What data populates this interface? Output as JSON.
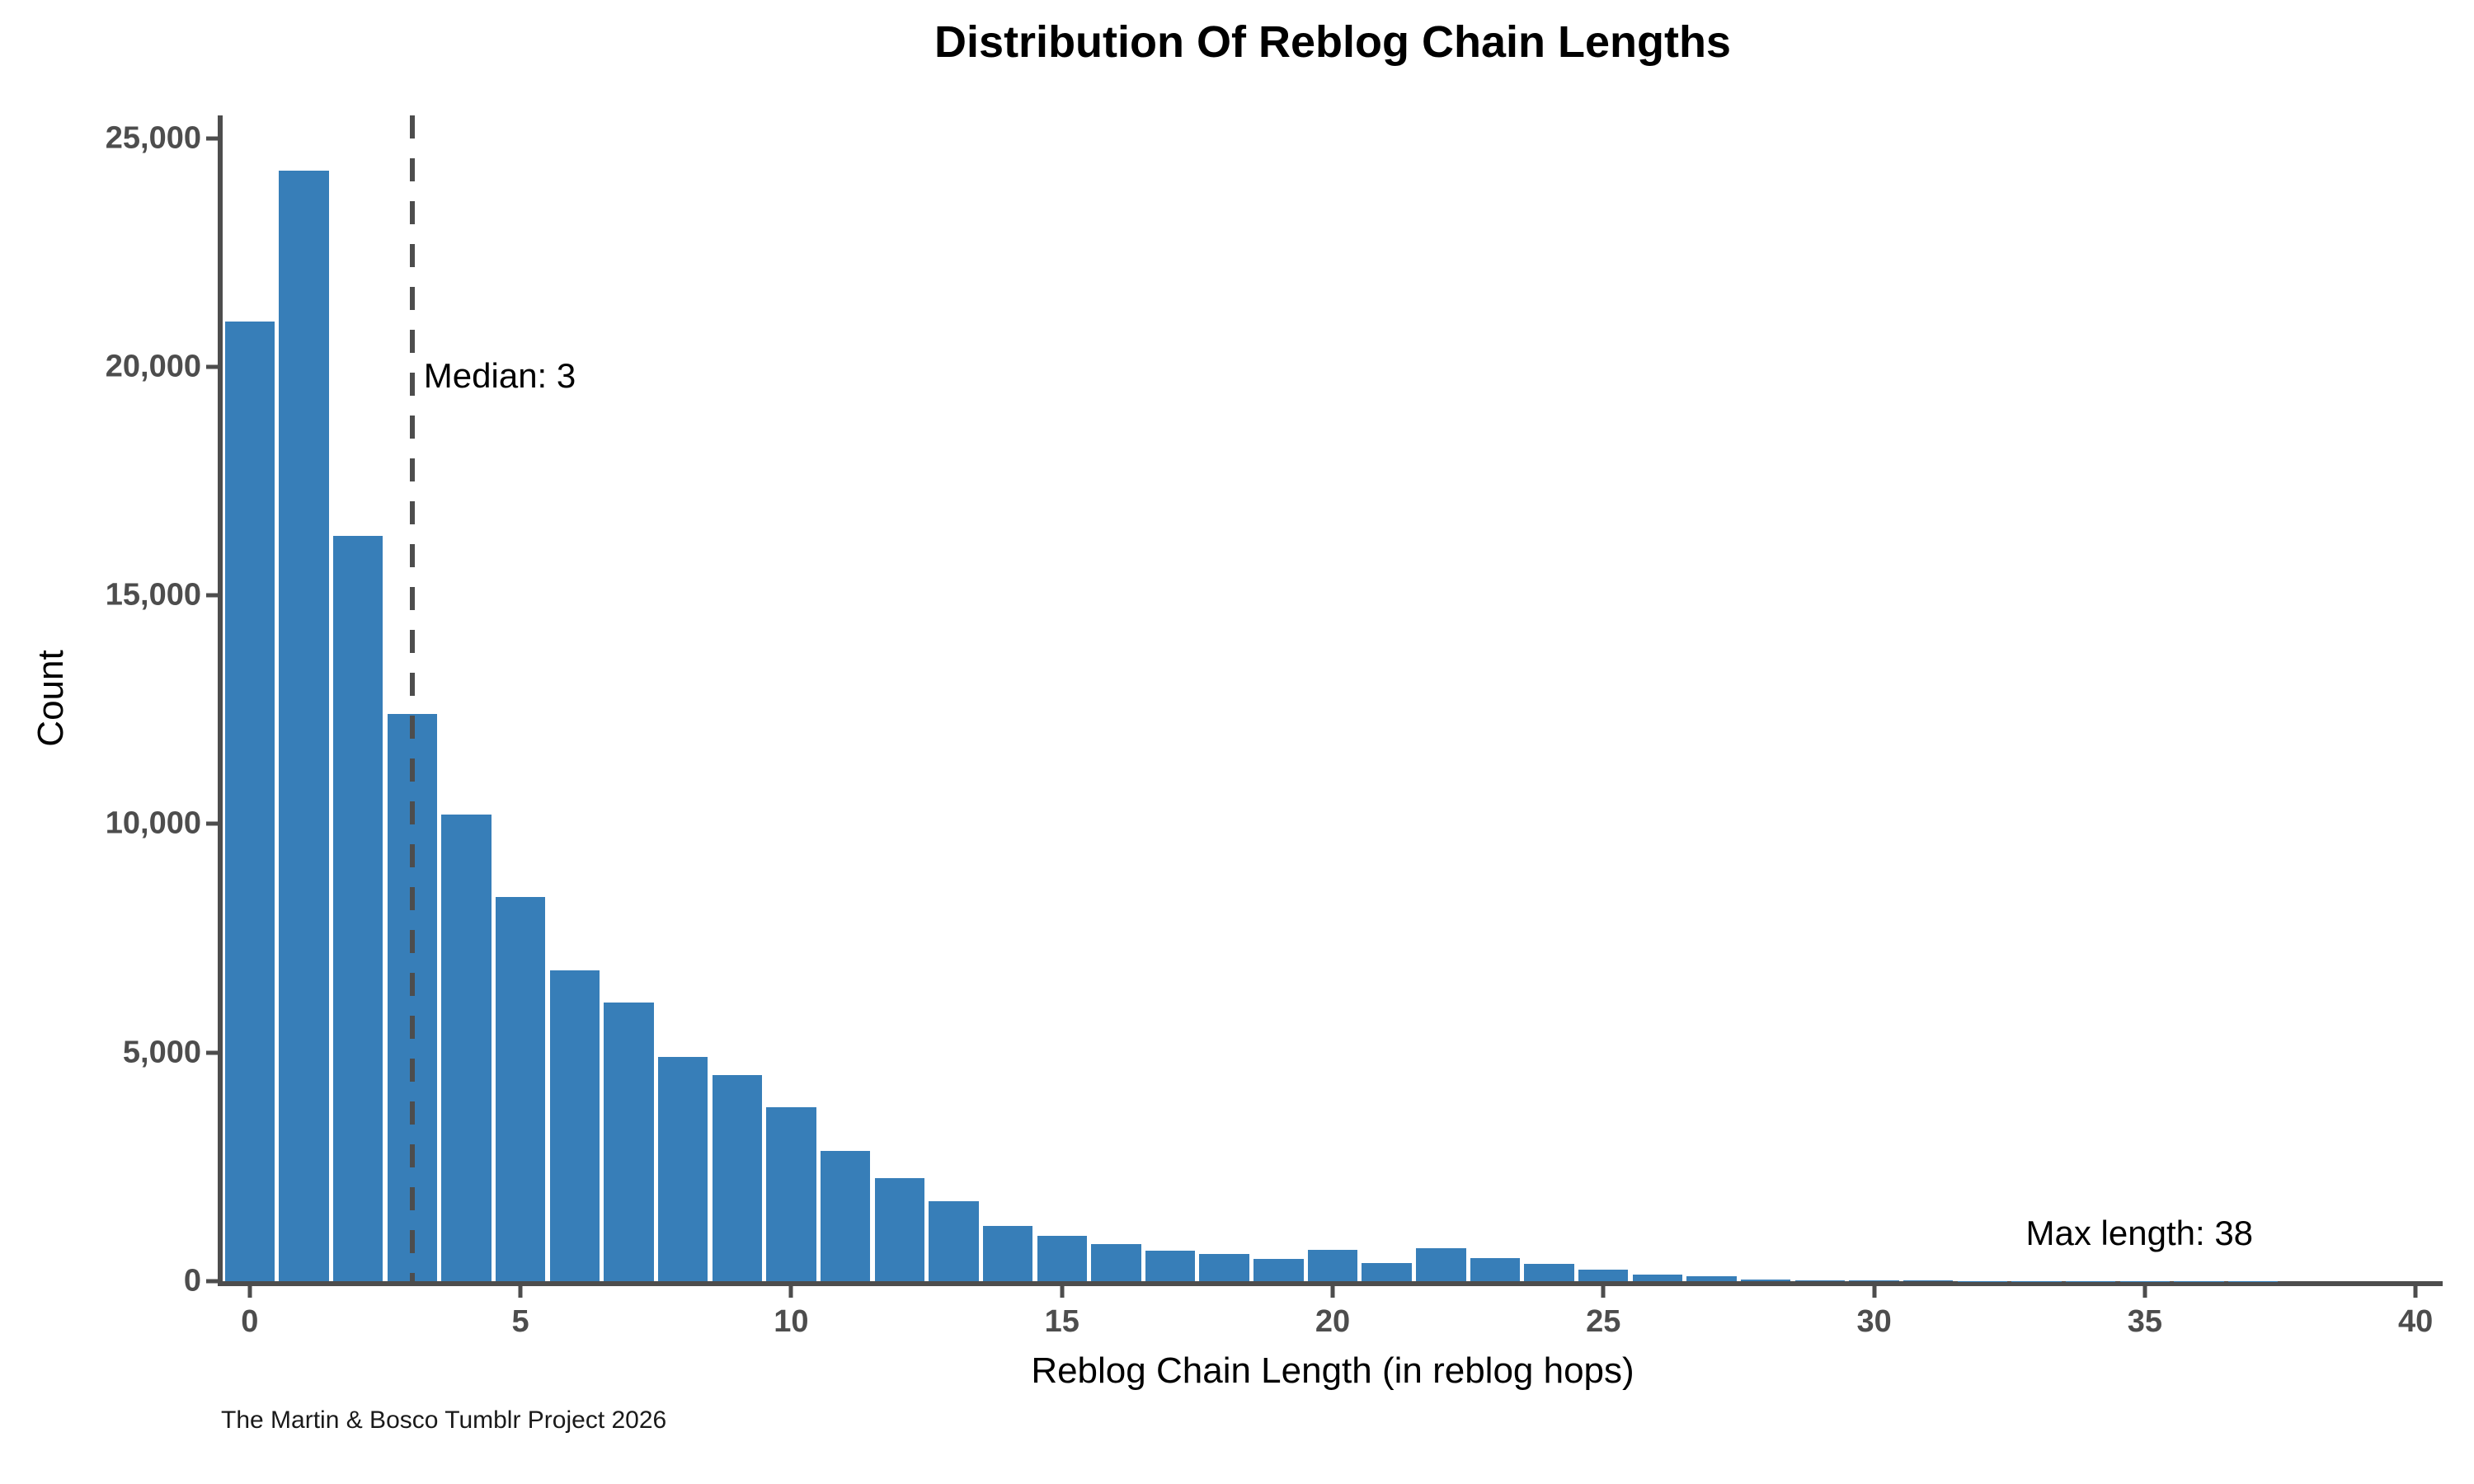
{
  "chart_data": {
    "type": "bar",
    "subtype": "histogram",
    "title": "Distribution Of Reblog Chain Lengths",
    "xlabel": "Reblog Chain Length (in reblog hops)",
    "ylabel": "Count",
    "caption": "The Martin & Bosco Tumblr Project 2026",
    "x": [
      0,
      1,
      2,
      3,
      4,
      5,
      6,
      7,
      8,
      9,
      10,
      11,
      12,
      13,
      14,
      15,
      16,
      17,
      18,
      19,
      20,
      21,
      22,
      23,
      24,
      25,
      26,
      27,
      28,
      29,
      30,
      31,
      32,
      33,
      34,
      35,
      36,
      37,
      38
    ],
    "values": [
      21000,
      24300,
      16300,
      12400,
      10200,
      8400,
      6800,
      6100,
      4900,
      4500,
      3800,
      2850,
      2250,
      1750,
      1200,
      1000,
      820,
      660,
      600,
      480,
      680,
      390,
      720,
      510,
      370,
      250,
      150,
      100,
      30,
      20,
      15,
      10,
      8,
      6,
      5,
      4,
      3,
      2,
      1
    ],
    "xlim": [
      -0.5,
      40.5
    ],
    "ylim": [
      0,
      25500
    ],
    "x_ticks": [
      0,
      5,
      10,
      15,
      20,
      25,
      30,
      35,
      40
    ],
    "y_ticks": [
      0,
      5000,
      10000,
      15000,
      20000,
      25000
    ],
    "y_tick_labels": [
      "0",
      "5,000",
      "10,000",
      "15,000",
      "20,000",
      "25,000"
    ],
    "bar_width": 0.92,
    "grid": "off",
    "legend": "none",
    "bar_color": "#377EB8",
    "axis_color": "#4D4D4D",
    "annotations": {
      "median_line_x": 3,
      "median_label": "Median: 3",
      "median_label_y": 19800,
      "max_label": "Max length: 38",
      "max_label_x": 34.9,
      "max_label_y": 1050
    }
  }
}
